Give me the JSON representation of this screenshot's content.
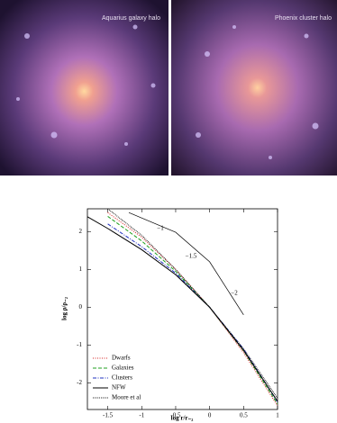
{
  "panels": {
    "left_label": "Aquarius galaxy halo",
    "right_label": "Phoenix cluster halo"
  },
  "chart_data": {
    "type": "line",
    "xlabel": "log r/r₋₂",
    "ylabel": "log ρ/ρ₋₂",
    "xlim": [
      -1.8,
      1
    ],
    "ylim": [
      -2.7,
      2.6
    ],
    "xticks": [
      -1.5,
      -1,
      -0.5,
      0,
      0.5,
      1
    ],
    "yticks": [
      -2,
      -1,
      0,
      1,
      2
    ],
    "legend": "lower left",
    "series": [
      {
        "name": "Dwarfs",
        "color": "#d62020",
        "dash": "1,1.5",
        "x": [
          -1.5,
          -1,
          -0.5,
          0,
          0.5,
          1
        ],
        "values": [
          2.5,
          1.85,
          1.0,
          0,
          -1.2,
          -2.6
        ]
      },
      {
        "name": "Galaxies",
        "color": "#20a020",
        "dash": "4,2",
        "x": [
          -1.5,
          -1,
          -0.5,
          0,
          0.5,
          1
        ],
        "values": [
          2.4,
          1.75,
          0.95,
          0,
          -1.15,
          -2.55
        ]
      },
      {
        "name": "Clusters",
        "color": "#2030c0",
        "dash": "4,1.5,1,1.5",
        "x": [
          -1.5,
          -1,
          -0.5,
          0,
          0.5,
          1
        ],
        "values": [
          2.2,
          1.6,
          0.9,
          0,
          -1.1,
          -2.5
        ]
      },
      {
        "name": "NFW",
        "color": "#000000",
        "dash": "none",
        "x": [
          -1.8,
          -1.5,
          -1,
          -0.5,
          0,
          0.5,
          1
        ],
        "values": [
          2.39,
          2.08,
          1.52,
          0.86,
          0,
          -1.14,
          -2.48
        ]
      },
      {
        "name": "Moore et al",
        "color": "#000000",
        "dash": "0.8,1",
        "x": [
          -1.5,
          -1,
          -0.5,
          0,
          0.5,
          1
        ],
        "values": [
          2.6,
          1.9,
          1.0,
          0,
          -1.1,
          -2.4
        ]
      }
    ],
    "reference_line": {
      "x": [
        -1.19,
        -0.5,
        0,
        0.5
      ],
      "values": [
        2.5,
        1.98,
        1.2,
        -0.2
      ]
    },
    "annotations": [
      "−1",
      "−1.5",
      "−2"
    ]
  }
}
